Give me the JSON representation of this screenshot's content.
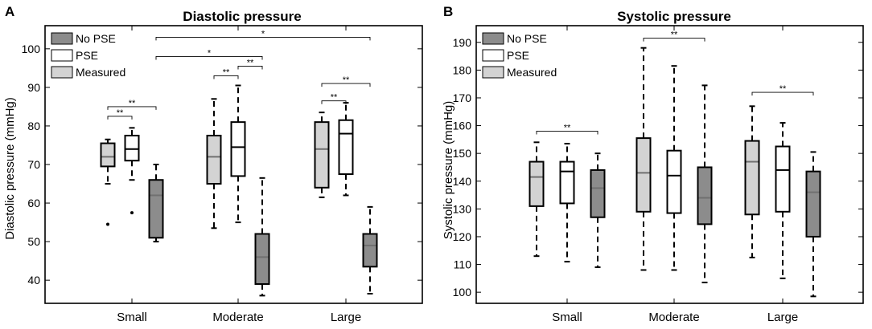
{
  "chart_data": [
    {
      "panel_label": "A",
      "type": "box",
      "title": "Diastolic pressure",
      "ylabel": "Diastolic pressure (mmHg)",
      "xlabel": "",
      "ylim": [
        34,
        106
      ],
      "yticks": [
        40,
        50,
        60,
        70,
        80,
        90,
        100
      ],
      "categories": [
        "Small",
        "Moderate",
        "Large"
      ],
      "legend": [
        {
          "name": "No PSE",
          "color": "#8c8c8c"
        },
        {
          "name": "PSE",
          "color": "#ffffff"
        },
        {
          "name": "Measured",
          "color": "#d3d3d3"
        }
      ],
      "boxes": [
        {
          "category": 0,
          "group": "Measured",
          "whisker_low": 65,
          "q1": 69.5,
          "median": 72,
          "q3": 75.5,
          "whisker_high": 76.5,
          "outliers": [
            54.5
          ]
        },
        {
          "category": 0,
          "group": "PSE",
          "whisker_low": 66,
          "q1": 71,
          "median": 74,
          "q3": 77.5,
          "whisker_high": 79.5,
          "outliers": [
            57.5
          ]
        },
        {
          "category": 0,
          "group": "No PSE",
          "whisker_low": 50,
          "q1": 51,
          "median": 62,
          "q3": 66,
          "whisker_high": 70,
          "outliers": []
        },
        {
          "category": 1,
          "group": "Measured",
          "whisker_low": 53.5,
          "q1": 65,
          "median": 72,
          "q3": 77.5,
          "whisker_high": 87,
          "outliers": []
        },
        {
          "category": 1,
          "group": "PSE",
          "whisker_low": 55,
          "q1": 67,
          "median": 74.5,
          "q3": 81,
          "whisker_high": 90.5,
          "outliers": []
        },
        {
          "category": 1,
          "group": "No PSE",
          "whisker_low": 36,
          "q1": 39,
          "median": 46,
          "q3": 52,
          "whisker_high": 66.5,
          "outliers": []
        },
        {
          "category": 2,
          "group": "Measured",
          "whisker_low": 61.5,
          "q1": 64,
          "median": 74,
          "q3": 81,
          "whisker_high": 83.5,
          "outliers": []
        },
        {
          "category": 2,
          "group": "PSE",
          "whisker_low": 62,
          "q1": 67.5,
          "median": 78,
          "q3": 81.5,
          "whisker_high": 86,
          "outliers": []
        },
        {
          "category": 2,
          "group": "No PSE",
          "whisker_low": 36.5,
          "q1": 43.5,
          "median": 49,
          "q3": 52,
          "whisker_high": 59,
          "outliers": []
        }
      ],
      "significance": [
        {
          "from": [
            0,
            "Measured"
          ],
          "to": [
            0,
            "PSE"
          ],
          "y": 82.5,
          "label": "**"
        },
        {
          "from": [
            0,
            "Measured"
          ],
          "to": [
            0,
            "No PSE"
          ],
          "y": 85,
          "label": "**"
        },
        {
          "from": [
            1,
            "Measured"
          ],
          "to": [
            1,
            "PSE"
          ],
          "y": 93,
          "label": "**"
        },
        {
          "from": [
            1,
            "PSE"
          ],
          "to": [
            1,
            "No PSE"
          ],
          "y": 95.5,
          "label": "**"
        },
        {
          "from": [
            0,
            "No PSE"
          ],
          "to": [
            1,
            "No PSE"
          ],
          "y": 98,
          "label": "*"
        },
        {
          "from": [
            0,
            "No PSE"
          ],
          "to": [
            2,
            "No PSE"
          ],
          "y": 103,
          "label": "*"
        },
        {
          "from": [
            2,
            "Measured"
          ],
          "to": [
            2,
            "PSE"
          ],
          "y": 86.5,
          "label": "**"
        },
        {
          "from": [
            2,
            "Measured"
          ],
          "to": [
            2,
            "No PSE"
          ],
          "y": 91,
          "label": "**"
        }
      ]
    },
    {
      "panel_label": "B",
      "type": "box",
      "title": "Systolic pressure",
      "ylabel": "Systolic pressure (mmHg)",
      "xlabel": "",
      "ylim": [
        96,
        196
      ],
      "yticks": [
        100,
        110,
        120,
        130,
        140,
        150,
        160,
        170,
        180,
        190
      ],
      "categories": [
        "Small",
        "Moderate",
        "Large"
      ],
      "legend": [
        {
          "name": "No PSE",
          "color": "#8c8c8c"
        },
        {
          "name": "PSE",
          "color": "#ffffff"
        },
        {
          "name": "Measured",
          "color": "#d3d3d3"
        }
      ],
      "boxes": [
        {
          "category": 0,
          "group": "Measured",
          "whisker_low": 113,
          "q1": 131,
          "median": 141.5,
          "q3": 147,
          "whisker_high": 154,
          "outliers": []
        },
        {
          "category": 0,
          "group": "PSE",
          "whisker_low": 111,
          "q1": 132,
          "median": 143.5,
          "q3": 147,
          "whisker_high": 153.5,
          "outliers": []
        },
        {
          "category": 0,
          "group": "No PSE",
          "whisker_low": 109,
          "q1": 127,
          "median": 137.5,
          "q3": 144,
          "whisker_high": 150,
          "outliers": []
        },
        {
          "category": 1,
          "group": "Measured",
          "whisker_low": 108,
          "q1": 129,
          "median": 143,
          "q3": 155.5,
          "whisker_high": 188,
          "outliers": []
        },
        {
          "category": 1,
          "group": "PSE",
          "whisker_low": 108,
          "q1": 128.5,
          "median": 142,
          "q3": 151,
          "whisker_high": 181.5,
          "outliers": []
        },
        {
          "category": 1,
          "group": "No PSE",
          "whisker_low": 103.5,
          "q1": 124.5,
          "median": 134,
          "q3": 145,
          "whisker_high": 174.5,
          "outliers": []
        },
        {
          "category": 2,
          "group": "Measured",
          "whisker_low": 112.5,
          "q1": 128,
          "median": 147,
          "q3": 154.5,
          "whisker_high": 167,
          "outliers": []
        },
        {
          "category": 2,
          "group": "PSE",
          "whisker_low": 105,
          "q1": 129,
          "median": 144,
          "q3": 152.5,
          "whisker_high": 161,
          "outliers": []
        },
        {
          "category": 2,
          "group": "No PSE",
          "whisker_low": 98.5,
          "q1": 120,
          "median": 136,
          "q3": 143.5,
          "whisker_high": 150.5,
          "outliers": []
        }
      ],
      "significance": [
        {
          "from": [
            0,
            "Measured"
          ],
          "to": [
            0,
            "No PSE"
          ],
          "y": 158,
          "label": "**"
        },
        {
          "from": [
            1,
            "Measured"
          ],
          "to": [
            1,
            "No PSE"
          ],
          "y": 191.5,
          "label": "**"
        },
        {
          "from": [
            2,
            "Measured"
          ],
          "to": [
            2,
            "No PSE"
          ],
          "y": 172,
          "label": "**"
        }
      ]
    }
  ]
}
